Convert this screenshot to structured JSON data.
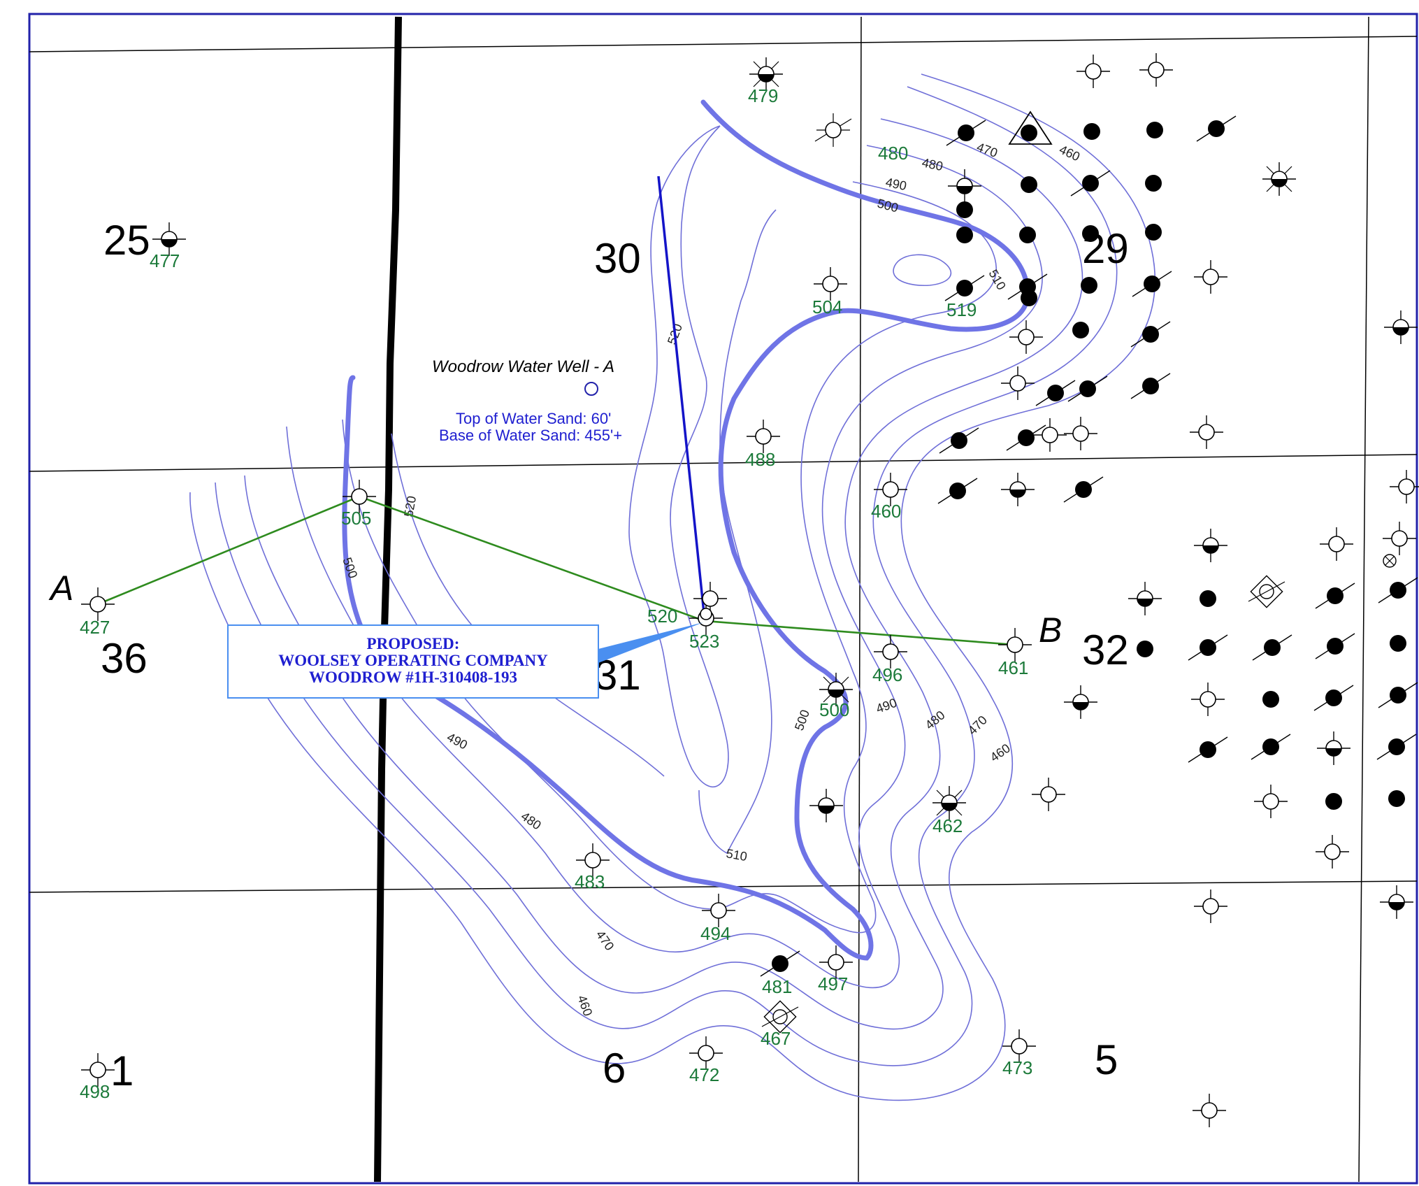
{
  "sections": [
    {
      "id": "25",
      "label": "25"
    },
    {
      "id": "30",
      "label": "30"
    },
    {
      "id": "29",
      "label": "29"
    },
    {
      "id": "36",
      "label": "36"
    },
    {
      "id": "31",
      "label": "31"
    },
    {
      "id": "32",
      "label": "32"
    },
    {
      "id": "1",
      "label": "1"
    },
    {
      "id": "6",
      "label": "6"
    },
    {
      "id": "5",
      "label": "5"
    }
  ],
  "well_values": [
    {
      "id": "v477",
      "value": "477"
    },
    {
      "id": "v479",
      "value": "479"
    },
    {
      "id": "v480",
      "value": "480"
    },
    {
      "id": "v504",
      "value": "504"
    },
    {
      "id": "v519",
      "value": "519"
    },
    {
      "id": "v488",
      "value": "488"
    },
    {
      "id": "v460",
      "value": "460"
    },
    {
      "id": "v505",
      "value": "505"
    },
    {
      "id": "v427",
      "value": "427"
    },
    {
      "id": "v520",
      "value": "520"
    },
    {
      "id": "v523",
      "value": "523"
    },
    {
      "id": "v461",
      "value": "461"
    },
    {
      "id": "v496",
      "value": "496"
    },
    {
      "id": "v500",
      "value": "500"
    },
    {
      "id": "v462",
      "value": "462"
    },
    {
      "id": "v483",
      "value": "483"
    },
    {
      "id": "v494",
      "value": "494"
    },
    {
      "id": "v481",
      "value": "481"
    },
    {
      "id": "v497",
      "value": "497"
    },
    {
      "id": "v467",
      "value": "467"
    },
    {
      "id": "v472",
      "value": "472"
    },
    {
      "id": "v473",
      "value": "473"
    },
    {
      "id": "v498",
      "value": "498"
    }
  ],
  "contour_labels": [
    {
      "id": "c470",
      "text": "470"
    },
    {
      "id": "c460",
      "text": "460"
    },
    {
      "id": "c480",
      "text": "480"
    },
    {
      "id": "c490",
      "text": "490"
    },
    {
      "id": "c500",
      "text": "500"
    },
    {
      "id": "c510",
      "text": "510"
    },
    {
      "id": "c520a",
      "text": "520"
    },
    {
      "id": "c520b",
      "text": "520"
    },
    {
      "id": "c500b",
      "text": "500"
    },
    {
      "id": "c490b",
      "text": "490"
    },
    {
      "id": "c480b",
      "text": "480"
    },
    {
      "id": "c510b",
      "text": "510"
    },
    {
      "id": "c470b",
      "text": "470"
    },
    {
      "id": "c460b",
      "text": "460"
    },
    {
      "id": "c500c",
      "text": "500"
    },
    {
      "id": "c490c",
      "text": "490"
    },
    {
      "id": "c480c",
      "text": "480"
    },
    {
      "id": "c470c",
      "text": "470"
    },
    {
      "id": "c460c",
      "text": "460"
    }
  ],
  "cross_section": {
    "start": "A",
    "end": "B"
  },
  "water_well": {
    "name": "Woodrow Water Well - A",
    "top": "Top of Water Sand: 60'",
    "base": "Base of Water Sand: 455'+"
  },
  "proposed": {
    "line1": "PROPOSED:",
    "line2": "WOOLSEY OPERATING COMPANY",
    "line3": "WOODROW #1H-310408-193"
  },
  "colors": {
    "contour": "#6f6fd8",
    "thick_contour": "#6f74e6",
    "well_value": "#1c7a3a",
    "cross_section_line": "#2e8b1e",
    "lateral": "#1414c8",
    "annotation": "#1f1fd0"
  },
  "symbols": {
    "dry_hole": "dry-hole-icon",
    "oil_well": "oil-well-icon",
    "gas_well": "gas-well-icon",
    "location": "location-icon"
  }
}
